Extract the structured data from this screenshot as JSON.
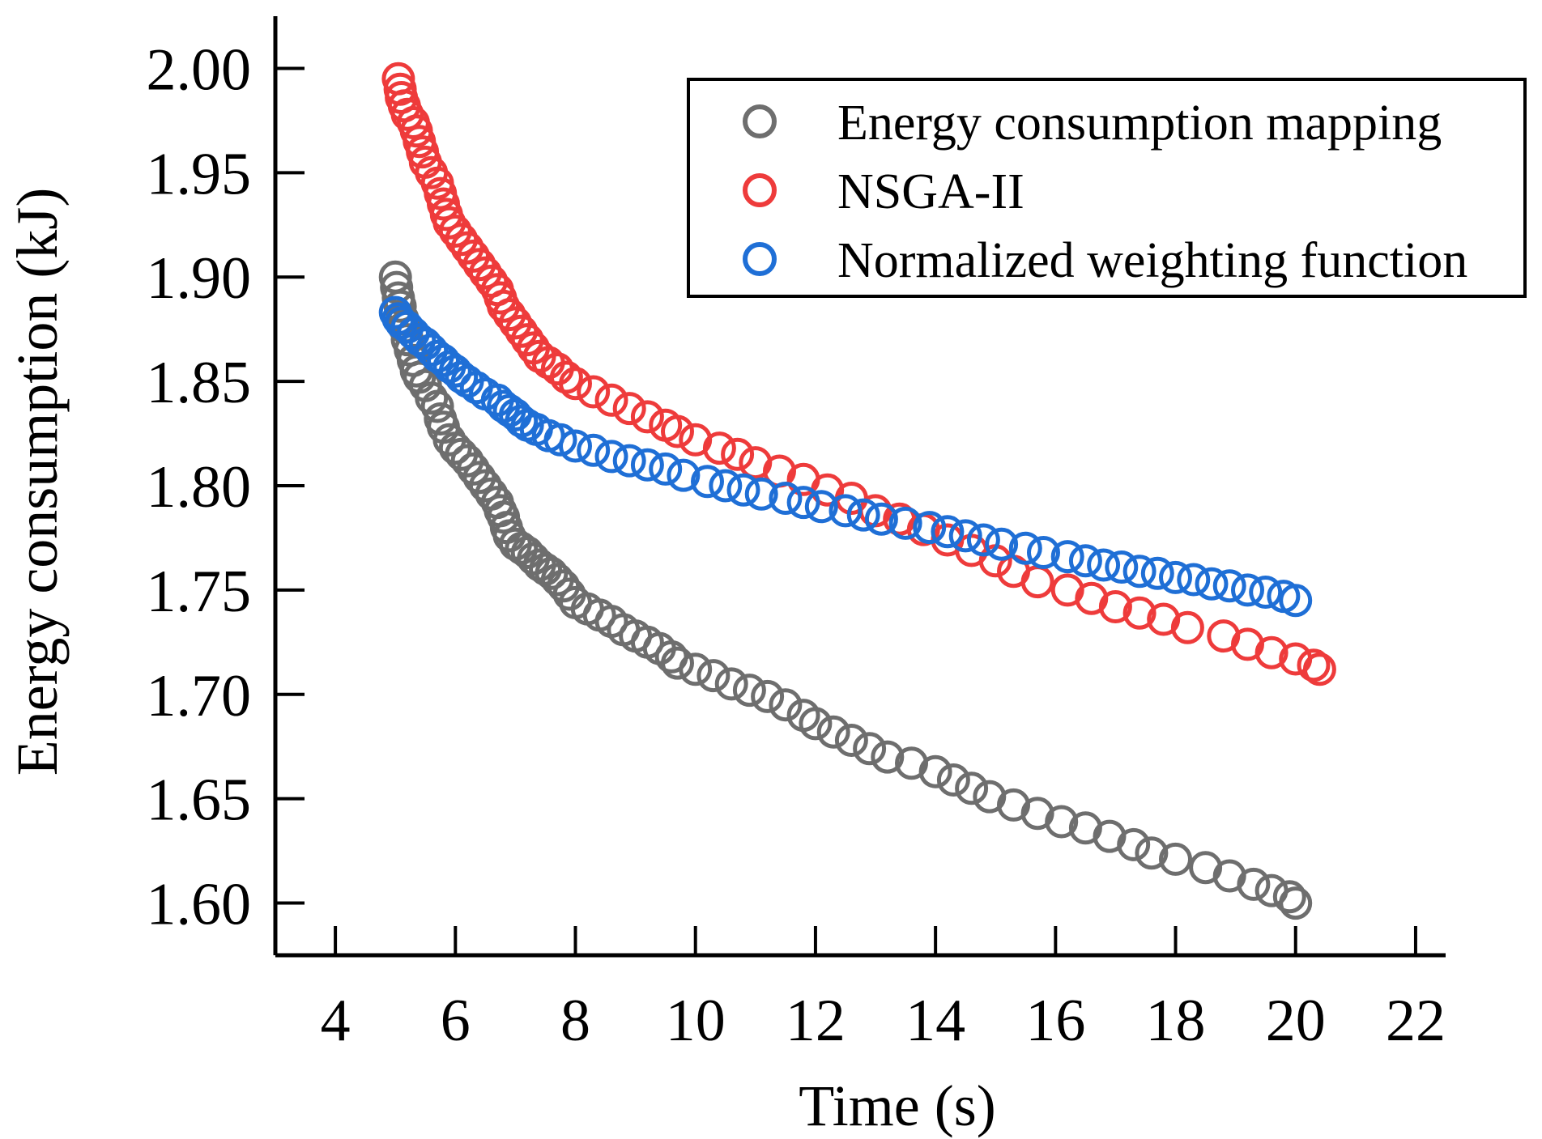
{
  "chart_data": {
    "type": "scatter",
    "title": "",
    "xlabel": "Time (s)",
    "ylabel": "Energy consumption (kJ)",
    "xlim": [
      3,
      22.5
    ],
    "ylim": [
      1.575,
      2.025
    ],
    "xticks": [
      4,
      6,
      8,
      10,
      12,
      14,
      16,
      18,
      20,
      22
    ],
    "xtick_labels": [
      "4",
      "6",
      "8",
      "10",
      "12",
      "14",
      "16",
      "18",
      "20",
      "22"
    ],
    "yticks": [
      1.6,
      1.65,
      1.7,
      1.75,
      1.8,
      1.85,
      1.9,
      1.95,
      2.0
    ],
    "ytick_labels": [
      "1.60",
      "1.65",
      "1.70",
      "1.75",
      "1.80",
      "1.85",
      "1.90",
      "1.95",
      "2.00"
    ],
    "grid": false,
    "legend_position": "top-right",
    "series": [
      {
        "name": "Energy consumption mapping",
        "color": "#6e6e6e",
        "marker": "open-circle",
        "points": [
          [
            5.0,
            1.9
          ],
          [
            5.02,
            1.895
          ],
          [
            5.05,
            1.89
          ],
          [
            5.08,
            1.886
          ],
          [
            5.12,
            1.88
          ],
          [
            5.15,
            1.876
          ],
          [
            5.2,
            1.87
          ],
          [
            5.25,
            1.865
          ],
          [
            5.3,
            1.86
          ],
          [
            5.35,
            1.855
          ],
          [
            5.4,
            1.852
          ],
          [
            5.5,
            1.848
          ],
          [
            5.6,
            1.842
          ],
          [
            5.7,
            1.838
          ],
          [
            5.75,
            1.832
          ],
          [
            5.8,
            1.828
          ],
          [
            5.9,
            1.822
          ],
          [
            6.0,
            1.818
          ],
          [
            6.1,
            1.815
          ],
          [
            6.2,
            1.812
          ],
          [
            6.3,
            1.808
          ],
          [
            6.4,
            1.804
          ],
          [
            6.5,
            1.8
          ],
          [
            6.6,
            1.796
          ],
          [
            6.7,
            1.792
          ],
          [
            6.75,
            1.788
          ],
          [
            6.8,
            1.785
          ],
          [
            6.85,
            1.78
          ],
          [
            6.9,
            1.776
          ],
          [
            7.0,
            1.772
          ],
          [
            7.1,
            1.77
          ],
          [
            7.2,
            1.768
          ],
          [
            7.3,
            1.765
          ],
          [
            7.4,
            1.762
          ],
          [
            7.5,
            1.76
          ],
          [
            7.6,
            1.758
          ],
          [
            7.7,
            1.755
          ],
          [
            7.8,
            1.752
          ],
          [
            7.9,
            1.748
          ],
          [
            8.0,
            1.744
          ],
          [
            8.2,
            1.741
          ],
          [
            8.4,
            1.738
          ],
          [
            8.6,
            1.735
          ],
          [
            8.8,
            1.731
          ],
          [
            9.0,
            1.728
          ],
          [
            9.2,
            1.725
          ],
          [
            9.4,
            1.722
          ],
          [
            9.6,
            1.718
          ],
          [
            9.7,
            1.715
          ],
          [
            10.0,
            1.712
          ],
          [
            10.3,
            1.709
          ],
          [
            10.6,
            1.705
          ],
          [
            10.9,
            1.702
          ],
          [
            11.2,
            1.699
          ],
          [
            11.5,
            1.695
          ],
          [
            11.8,
            1.69
          ],
          [
            12.0,
            1.686
          ],
          [
            12.3,
            1.682
          ],
          [
            12.6,
            1.678
          ],
          [
            12.9,
            1.674
          ],
          [
            13.2,
            1.67
          ],
          [
            13.6,
            1.667
          ],
          [
            14.0,
            1.663
          ],
          [
            14.3,
            1.659
          ],
          [
            14.6,
            1.655
          ],
          [
            14.9,
            1.651
          ],
          [
            15.3,
            1.647
          ],
          [
            15.7,
            1.643
          ],
          [
            16.1,
            1.639
          ],
          [
            16.5,
            1.636
          ],
          [
            16.9,
            1.632
          ],
          [
            17.3,
            1.628
          ],
          [
            17.6,
            1.624
          ],
          [
            18.0,
            1.621
          ],
          [
            18.5,
            1.617
          ],
          [
            18.9,
            1.613
          ],
          [
            19.3,
            1.609
          ],
          [
            19.6,
            1.606
          ],
          [
            19.9,
            1.603
          ],
          [
            20.0,
            1.6
          ]
        ]
      },
      {
        "name": "NSGA-II",
        "color": "#ee3b3b",
        "marker": "open-circle",
        "points": [
          [
            5.05,
            1.995
          ],
          [
            5.08,
            1.99
          ],
          [
            5.1,
            1.986
          ],
          [
            5.15,
            1.982
          ],
          [
            5.2,
            1.978
          ],
          [
            5.3,
            1.974
          ],
          [
            5.35,
            1.97
          ],
          [
            5.4,
            1.965
          ],
          [
            5.45,
            1.96
          ],
          [
            5.5,
            1.955
          ],
          [
            5.6,
            1.95
          ],
          [
            5.7,
            1.945
          ],
          [
            5.75,
            1.94
          ],
          [
            5.8,
            1.935
          ],
          [
            5.85,
            1.93
          ],
          [
            5.9,
            1.926
          ],
          [
            6.0,
            1.922
          ],
          [
            6.1,
            1.918
          ],
          [
            6.2,
            1.914
          ],
          [
            6.3,
            1.91
          ],
          [
            6.4,
            1.906
          ],
          [
            6.5,
            1.902
          ],
          [
            6.6,
            1.898
          ],
          [
            6.7,
            1.894
          ],
          [
            6.75,
            1.89
          ],
          [
            6.8,
            1.886
          ],
          [
            6.9,
            1.882
          ],
          [
            7.0,
            1.878
          ],
          [
            7.1,
            1.874
          ],
          [
            7.2,
            1.87
          ],
          [
            7.3,
            1.866
          ],
          [
            7.4,
            1.862
          ],
          [
            7.55,
            1.859
          ],
          [
            7.7,
            1.856
          ],
          [
            7.85,
            1.852
          ],
          [
            8.0,
            1.849
          ],
          [
            8.3,
            1.845
          ],
          [
            8.6,
            1.841
          ],
          [
            8.9,
            1.837
          ],
          [
            9.2,
            1.833
          ],
          [
            9.5,
            1.829
          ],
          [
            9.7,
            1.826
          ],
          [
            10.0,
            1.822
          ],
          [
            10.4,
            1.818
          ],
          [
            10.7,
            1.815
          ],
          [
            11.0,
            1.811
          ],
          [
            11.4,
            1.807
          ],
          [
            11.8,
            1.803
          ],
          [
            12.2,
            1.798
          ],
          [
            12.6,
            1.794
          ],
          [
            13.0,
            1.788
          ],
          [
            13.4,
            1.784
          ],
          [
            13.8,
            1.779
          ],
          [
            14.2,
            1.774
          ],
          [
            14.6,
            1.769
          ],
          [
            15.0,
            1.764
          ],
          [
            15.3,
            1.759
          ],
          [
            15.7,
            1.754
          ],
          [
            16.2,
            1.75
          ],
          [
            16.6,
            1.746
          ],
          [
            17.0,
            1.742
          ],
          [
            17.4,
            1.739
          ],
          [
            17.8,
            1.736
          ],
          [
            18.2,
            1.732
          ],
          [
            18.8,
            1.728
          ],
          [
            19.2,
            1.724
          ],
          [
            19.6,
            1.72
          ],
          [
            20.0,
            1.717
          ],
          [
            20.3,
            1.714
          ],
          [
            20.4,
            1.712
          ]
        ]
      },
      {
        "name": "Normalized weighting function",
        "color": "#1f6fd6",
        "marker": "open-circle",
        "points": [
          [
            5.0,
            1.883
          ],
          [
            5.05,
            1.88
          ],
          [
            5.1,
            1.878
          ],
          [
            5.2,
            1.876
          ],
          [
            5.3,
            1.873
          ],
          [
            5.4,
            1.87
          ],
          [
            5.5,
            1.868
          ],
          [
            5.6,
            1.865
          ],
          [
            5.7,
            1.862
          ],
          [
            5.8,
            1.86
          ],
          [
            5.9,
            1.857
          ],
          [
            6.0,
            1.855
          ],
          [
            6.1,
            1.852
          ],
          [
            6.2,
            1.85
          ],
          [
            6.35,
            1.847
          ],
          [
            6.5,
            1.844
          ],
          [
            6.7,
            1.841
          ],
          [
            6.8,
            1.838
          ],
          [
            6.9,
            1.836
          ],
          [
            7.0,
            1.834
          ],
          [
            7.1,
            1.831
          ],
          [
            7.2,
            1.829
          ],
          [
            7.35,
            1.827
          ],
          [
            7.55,
            1.824
          ],
          [
            7.75,
            1.822
          ],
          [
            8.0,
            1.819
          ],
          [
            8.3,
            1.817
          ],
          [
            8.6,
            1.814
          ],
          [
            8.9,
            1.812
          ],
          [
            9.2,
            1.81
          ],
          [
            9.5,
            1.808
          ],
          [
            9.8,
            1.805
          ],
          [
            10.2,
            1.802
          ],
          [
            10.5,
            1.8
          ],
          [
            10.8,
            1.798
          ],
          [
            11.1,
            1.796
          ],
          [
            11.5,
            1.794
          ],
          [
            11.8,
            1.792
          ],
          [
            12.1,
            1.79
          ],
          [
            12.5,
            1.788
          ],
          [
            12.8,
            1.786
          ],
          [
            13.1,
            1.784
          ],
          [
            13.5,
            1.782
          ],
          [
            13.9,
            1.78
          ],
          [
            14.2,
            1.778
          ],
          [
            14.5,
            1.776
          ],
          [
            14.8,
            1.774
          ],
          [
            15.1,
            1.772
          ],
          [
            15.5,
            1.77
          ],
          [
            15.8,
            1.768
          ],
          [
            16.2,
            1.766
          ],
          [
            16.5,
            1.764
          ],
          [
            16.8,
            1.762
          ],
          [
            17.1,
            1.761
          ],
          [
            17.4,
            1.759
          ],
          [
            17.7,
            1.758
          ],
          [
            18.0,
            1.756
          ],
          [
            18.3,
            1.755
          ],
          [
            18.6,
            1.753
          ],
          [
            18.9,
            1.752
          ],
          [
            19.2,
            1.75
          ],
          [
            19.5,
            1.749
          ],
          [
            19.8,
            1.747
          ],
          [
            20.0,
            1.745
          ]
        ]
      }
    ]
  }
}
